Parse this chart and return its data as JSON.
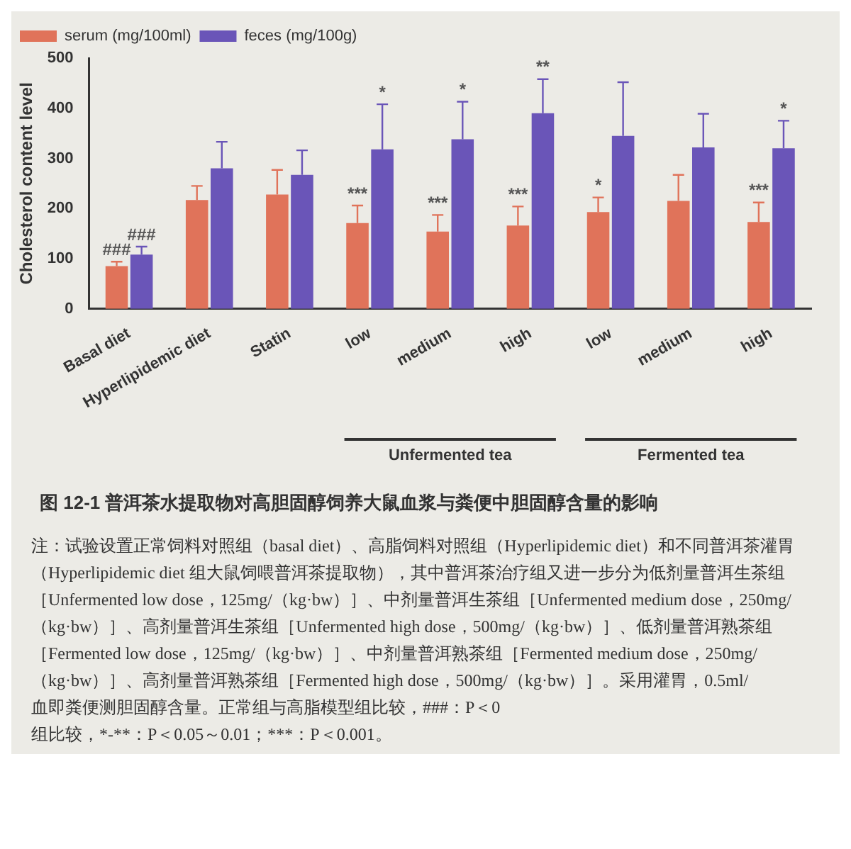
{
  "chart_data": {
    "type": "bar",
    "title": "图 12-1  普洱茶水提取物对高胆固醇饲养大鼠血浆与粪便中胆固醇含量的影响",
    "ylabel": "Cholesterol content level",
    "categories": [
      "Basal diet",
      "Hyperlipidemic diet",
      "Statin",
      "low",
      "medium",
      "high",
      "low",
      "medium",
      "high"
    ],
    "series": [
      {
        "name": "serum (mg/100ml)",
        "color": "#e0735a",
        "values": [
          85,
          217,
          228,
          171,
          154,
          166,
          193,
          215,
          173
        ],
        "errors": [
          9,
          28,
          49,
          35,
          33,
          38,
          29,
          52,
          39
        ],
        "value_labels": [
          "###",
          null,
          null,
          "***",
          "***",
          "***",
          "*",
          null,
          "***"
        ]
      },
      {
        "name": "feces (mg/100g)",
        "color": "#6a55b8",
        "values": [
          108,
          280,
          267,
          318,
          338,
          390,
          345,
          322,
          320
        ],
        "errors": [
          16,
          53,
          49,
          90,
          75,
          68,
          107,
          67,
          55
        ],
        "value_labels": [
          "###",
          null,
          null,
          "*",
          "*",
          "**",
          null,
          null,
          "*"
        ]
      }
    ],
    "ylim": [
      0,
      500
    ],
    "yticks": [
      0,
      100,
      200,
      300,
      400,
      500
    ],
    "grid": false,
    "legend": "top left",
    "annotations": [
      "Unfermented tea",
      "Fermented tea",
      "注：试验设置正常饲料对照组（basal diet）、高脂饲料对照组（Hyperlipidemic diet）和不同普洱茶灌胃（Hyperlipidemic diet 组大鼠饲喂普洱茶提取物），其中普洱茶治疗组又进一步分为低剂量普洱生茶组［Unfermented low dose，125mg/（kg·bw）］、中剂量普洱生茶组［Unfermented medium dose，250mg/（kg·bw）］、高剂量普洱生茶组［Unfermented high dose，500mg/（kg·bw）］、低剂量普洱熟茶组［Fermented low dose，125mg/（kg·bw）］、中剂量普洱熟茶组［Fermented medium dose，250mg/（kg·bw）］、高剂量普洱熟茶组［Fermented high dose，500mg/（kg·bw）］。采用灌胃，0.5ml/",
      "血即粪便测胆固醇含量。正常组与高脂模型组比较，###：P＜0",
      "组比较，*-**：P＜0.05～0.01；***：P＜0.001。"
    ]
  }
}
